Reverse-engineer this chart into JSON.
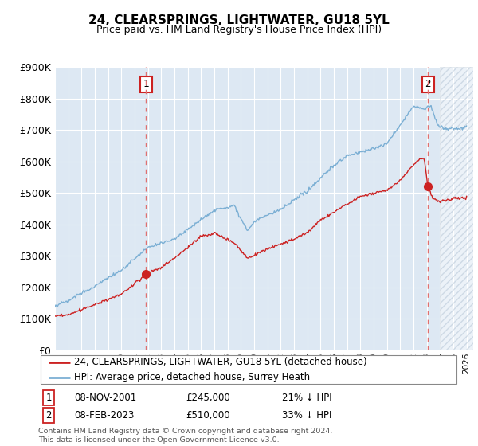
{
  "title": "24, CLEARSPRINGS, LIGHTWATER, GU18 5YL",
  "subtitle": "Price paid vs. HM Land Registry's House Price Index (HPI)",
  "hpi_label": "HPI: Average price, detached house, Surrey Heath",
  "price_label": "24, CLEARSPRINGS, LIGHTWATER, GU18 5YL (detached house)",
  "hpi_color": "#7bafd4",
  "price_color": "#cc2222",
  "vline_color": "#e07070",
  "bg_color": "#dde8f3",
  "hatch_color": "#c8d8e8",
  "grid_color": "#ffffff",
  "ylim": [
    0,
    900000
  ],
  "yticks": [
    0,
    100000,
    200000,
    300000,
    400000,
    500000,
    600000,
    700000,
    800000,
    900000
  ],
  "xlim_start": 1995.0,
  "xlim_end": 2026.5,
  "footnote": "Contains HM Land Registry data © Crown copyright and database right 2024.\nThis data is licensed under the Open Government Licence v3.0.",
  "marker1_date": 2001.86,
  "marker1_label": "1",
  "marker1_price": 245000,
  "marker1_text": "08-NOV-2001",
  "marker1_pct": "21% ↓ HPI",
  "marker2_date": 2023.1,
  "marker2_label": "2",
  "marker2_price": 510000,
  "marker2_text": "08-FEB-2023",
  "marker2_pct": "33% ↓ HPI",
  "hatch_start": 2024.0
}
